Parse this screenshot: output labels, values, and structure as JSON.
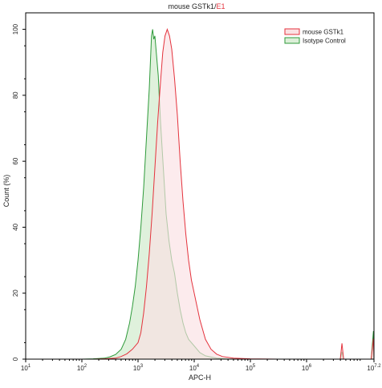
{
  "chart_data": {
    "type": "area",
    "title_main": "mouse GSTk1",
    "title_sep": "/",
    "title_gate": "E1",
    "xlabel": "APC-H",
    "ylabel": "Count (%)",
    "x_scale": "log10",
    "xlim": [
      1,
      7.2
    ],
    "ylim": [
      0,
      105
    ],
    "x_ticks": [
      {
        "pos": 1,
        "base": "10",
        "exp": "1"
      },
      {
        "pos": 2,
        "base": "10",
        "exp": "2"
      },
      {
        "pos": 3,
        "base": "10",
        "exp": "3"
      },
      {
        "pos": 4,
        "base": "10",
        "exp": "4"
      },
      {
        "pos": 5,
        "base": "10",
        "exp": "5"
      },
      {
        "pos": 6,
        "base": "10",
        "exp": "6"
      },
      {
        "pos": 7.2,
        "base": "10",
        "exp": "7.2"
      }
    ],
    "y_ticks": [
      0,
      20,
      40,
      60,
      80,
      100
    ],
    "legend_position": "top-right",
    "series": [
      {
        "name": "Isotype Control",
        "stroke": "#2e9a3a",
        "fill": "#dcefd8",
        "points": [
          [
            1.0,
            0
          ],
          [
            2.0,
            0
          ],
          [
            2.2,
            0.1
          ],
          [
            2.4,
            0.3
          ],
          [
            2.5,
            0.7
          ],
          [
            2.6,
            1.4
          ],
          [
            2.7,
            3
          ],
          [
            2.78,
            6
          ],
          [
            2.85,
            11
          ],
          [
            2.9,
            16
          ],
          [
            2.95,
            22
          ],
          [
            3.0,
            30
          ],
          [
            3.05,
            40
          ],
          [
            3.1,
            52
          ],
          [
            3.14,
            64
          ],
          [
            3.18,
            76
          ],
          [
            3.2,
            82
          ],
          [
            3.22,
            90
          ],
          [
            3.24,
            98
          ],
          [
            3.26,
            100
          ],
          [
            3.28,
            97
          ],
          [
            3.3,
            98
          ],
          [
            3.33,
            92
          ],
          [
            3.36,
            86
          ],
          [
            3.4,
            72
          ],
          [
            3.45,
            58
          ],
          [
            3.5,
            44
          ],
          [
            3.55,
            36
          ],
          [
            3.6,
            30
          ],
          [
            3.65,
            26
          ],
          [
            3.7,
            20
          ],
          [
            3.75,
            15
          ],
          [
            3.8,
            11
          ],
          [
            3.85,
            8
          ],
          [
            3.9,
            6
          ],
          [
            4.0,
            4
          ],
          [
            4.1,
            2
          ],
          [
            4.2,
            1
          ],
          [
            4.4,
            0.3
          ],
          [
            4.6,
            0.1
          ],
          [
            5.0,
            0
          ],
          [
            6.5,
            0
          ],
          [
            6.6,
            0
          ],
          [
            6.63,
            2.2
          ],
          [
            6.66,
            0
          ],
          [
            7.15,
            0
          ],
          [
            7.19,
            8.5
          ],
          [
            7.2,
            0
          ]
        ]
      },
      {
        "name": "mouse GSTk1",
        "stroke": "#e4323c",
        "fill": "#fbe1e3",
        "points": [
          [
            1.0,
            0
          ],
          [
            2.2,
            0
          ],
          [
            2.4,
            0.1
          ],
          [
            2.6,
            0.3
          ],
          [
            2.7,
            0.8
          ],
          [
            2.8,
            1.6
          ],
          [
            2.9,
            3
          ],
          [
            3.0,
            5
          ],
          [
            3.05,
            8
          ],
          [
            3.1,
            14
          ],
          [
            3.15,
            22
          ],
          [
            3.2,
            32
          ],
          [
            3.25,
            44
          ],
          [
            3.3,
            58
          ],
          [
            3.35,
            72
          ],
          [
            3.4,
            84
          ],
          [
            3.44,
            93
          ],
          [
            3.48,
            98
          ],
          [
            3.52,
            100
          ],
          [
            3.56,
            98
          ],
          [
            3.6,
            94
          ],
          [
            3.65,
            85
          ],
          [
            3.7,
            74
          ],
          [
            3.75,
            60
          ],
          [
            3.8,
            48
          ],
          [
            3.85,
            38
          ],
          [
            3.9,
            30
          ],
          [
            3.95,
            24
          ],
          [
            4.0,
            20
          ],
          [
            4.05,
            16
          ],
          [
            4.1,
            12
          ],
          [
            4.15,
            9
          ],
          [
            4.2,
            6
          ],
          [
            4.3,
            3
          ],
          [
            4.4,
            1.5
          ],
          [
            4.5,
            0.8
          ],
          [
            4.7,
            0.3
          ],
          [
            5.0,
            0.1
          ],
          [
            5.5,
            0
          ],
          [
            6.5,
            0
          ],
          [
            6.6,
            0
          ],
          [
            6.63,
            4.8
          ],
          [
            6.66,
            0
          ],
          [
            7.15,
            0
          ],
          [
            7.19,
            6.2
          ],
          [
            7.2,
            0
          ]
        ]
      }
    ]
  }
}
